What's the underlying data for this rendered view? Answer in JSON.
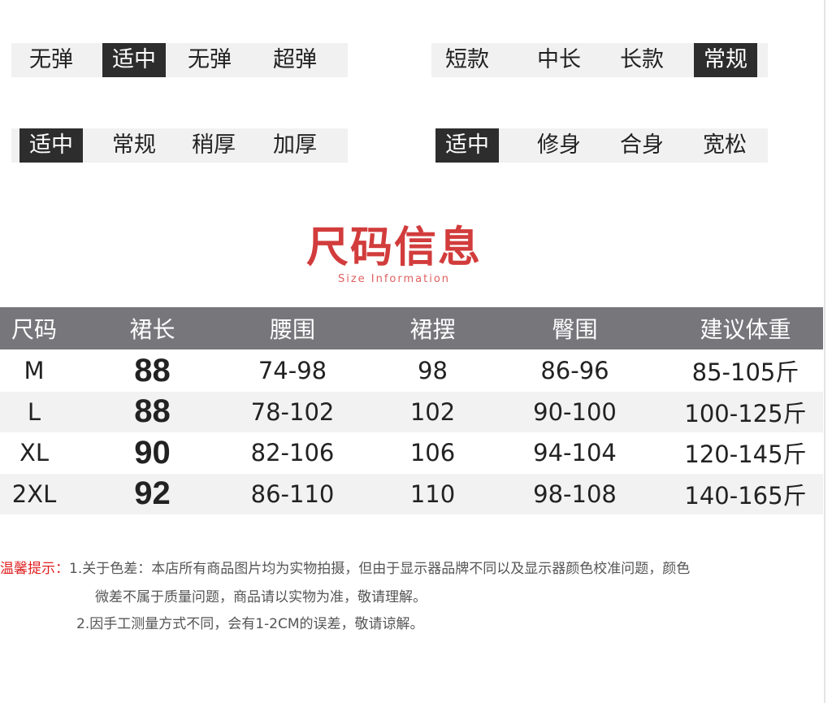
{
  "options": {
    "elasticity": {
      "items": [
        "无弹",
        "适中",
        "无弹",
        "超弹"
      ],
      "selected": 1
    },
    "length": {
      "items": [
        "短款",
        "中长",
        "长款",
        "常规"
      ],
      "selected": 3
    },
    "thickness": {
      "items": [
        "适中",
        "常规",
        "稍厚",
        "加厚"
      ],
      "selected": 0
    },
    "fit": {
      "items": [
        "适中",
        "修身",
        "合身",
        "宽松"
      ],
      "selected": 0
    }
  },
  "section": {
    "title": "尺码信息",
    "subtitle": "Size Information"
  },
  "table": {
    "headers": [
      "尺码",
      "裙长",
      "腰围",
      "裙摆",
      "臀围",
      "建议体重"
    ],
    "rows": [
      [
        "M",
        "88",
        "74-98",
        "98",
        "86-96",
        "85-105斤"
      ],
      [
        "L",
        "88",
        "78-102",
        "102",
        "90-100",
        "100-125斤"
      ],
      [
        "XL",
        "90",
        "82-106",
        "106",
        "94-104",
        "120-145斤"
      ],
      [
        "2XL",
        "92",
        "86-110",
        "110",
        "98-108",
        "140-165斤"
      ]
    ]
  },
  "notes": {
    "label": "温馨提示：",
    "line1": "1.关于色差：本店所有商品图片均为实物拍摄，但由于显示器品牌不同以及显示器颜色校准问题，颜色",
    "line1b": "微差不属于质量问题，商品请以实物为准，敬请理解。",
    "line2": "2.因手工测量方式不同，会有1-2CM的误差，敬请谅解。"
  },
  "colors": {
    "accent": "#d23c3c",
    "header_bg": "#77767b",
    "selected_bg": "#2d2d2d"
  }
}
